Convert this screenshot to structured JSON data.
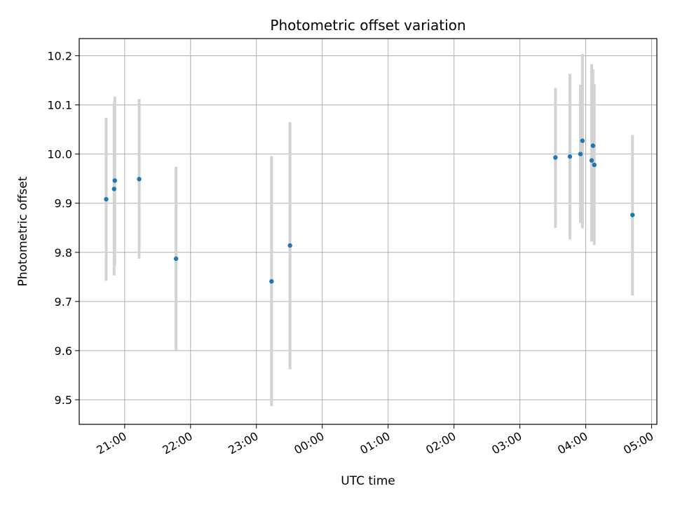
{
  "chart_data": {
    "type": "scatter",
    "title": "Photometric offset variation",
    "xlabel": "UTC time",
    "ylabel": "Photometric offset",
    "x_tick_labels": [
      "21:00",
      "22:00",
      "23:00",
      "00:00",
      "01:00",
      "02:00",
      "03:00",
      "04:00",
      "05:00"
    ],
    "x_tick_hours": [
      21,
      22,
      23,
      24,
      25,
      26,
      27,
      28,
      29
    ],
    "xlim_hours": [
      20.31,
      29.08
    ],
    "y_ticks": [
      "9.5",
      "9.6",
      "9.7",
      "9.8",
      "9.9",
      "10.0",
      "10.1",
      "10.2"
    ],
    "ylim": [
      9.45,
      10.235
    ],
    "grid": true,
    "marker_color": "#1f77b4",
    "errorbar_color": "#d3d3d3",
    "points": [
      {
        "t": 20.72,
        "y": 9.908,
        "lo": 9.742,
        "hi": 10.074
      },
      {
        "t": 20.84,
        "y": 9.929,
        "lo": 9.753,
        "hi": 10.104
      },
      {
        "t": 20.85,
        "y": 9.946,
        "lo": 9.773,
        "hi": 10.117
      },
      {
        "t": 21.22,
        "y": 9.949,
        "lo": 9.787,
        "hi": 10.112
      },
      {
        "t": 21.78,
        "y": 9.787,
        "lo": 9.6,
        "hi": 9.974
      },
      {
        "t": 23.23,
        "y": 9.741,
        "lo": 9.487,
        "hi": 9.996
      },
      {
        "t": 23.51,
        "y": 9.814,
        "lo": 9.562,
        "hi": 10.065
      },
      {
        "t": 27.54,
        "y": 9.993,
        "lo": 9.85,
        "hi": 10.134
      },
      {
        "t": 27.76,
        "y": 9.995,
        "lo": 9.826,
        "hi": 10.163
      },
      {
        "t": 27.92,
        "y": 10.0,
        "lo": 9.86,
        "hi": 10.141
      },
      {
        "t": 27.95,
        "y": 10.027,
        "lo": 9.849,
        "hi": 10.204
      },
      {
        "t": 28.09,
        "y": 9.987,
        "lo": 9.822,
        "hi": 10.183
      },
      {
        "t": 28.11,
        "y": 10.017,
        "lo": 9.828,
        "hi": 10.172
      },
      {
        "t": 28.13,
        "y": 9.978,
        "lo": 9.815,
        "hi": 10.142
      },
      {
        "t": 28.71,
        "y": 9.876,
        "lo": 9.712,
        "hi": 10.039
      }
    ]
  }
}
